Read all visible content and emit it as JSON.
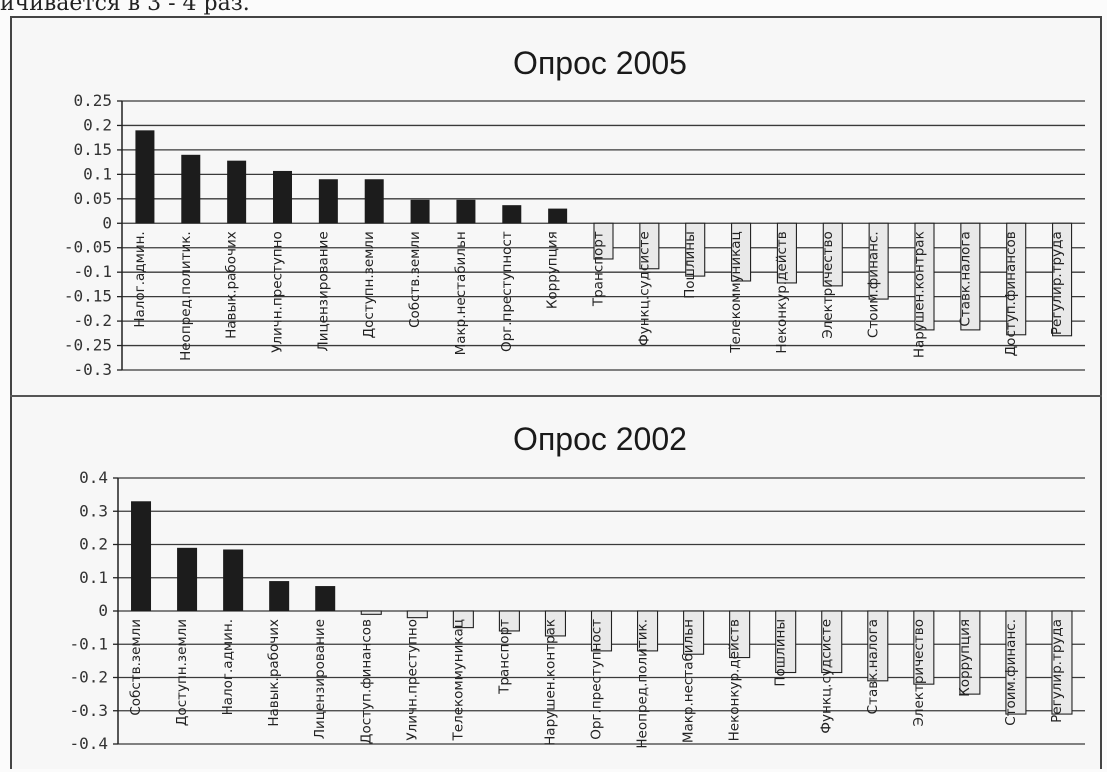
{
  "page": {
    "top_text": "ичивается в 3 - 4 раз."
  },
  "chart_data": [
    {
      "type": "bar",
      "title": "Опрос 2005",
      "ylim": [
        -0.3,
        0.25
      ],
      "yticks": [
        "0.25",
        "0.2",
        "0.15",
        "0.1",
        "0.05",
        "0",
        "-0.05",
        "-0.1",
        "-0.15",
        "-0.2",
        "-0.25",
        "-0.3"
      ],
      "ytick_values": [
        0.25,
        0.2,
        0.15,
        0.1,
        0.05,
        0,
        -0.05,
        -0.1,
        -0.15,
        -0.2,
        -0.25,
        -0.3
      ],
      "grid": true,
      "categories": [
        "Налог.админ.",
        "Неопред.политик.",
        "Навык.рабочих",
        "Уличн.преступно",
        "Лицензирование",
        "Доступн.земли",
        "Собств.земли",
        "Макр.нестабильн",
        "Орг.преступност",
        "Коррупция",
        "Транспорт",
        "Функц.судсисте",
        "Пошлины",
        "Телекоммуникац",
        "Неконкур.действ",
        "Электричество",
        "Стоим.финанс.",
        "Нарушен.контрак",
        "Ставк.налога",
        "Доступ.финансов",
        "Регулир.труда"
      ],
      "values": [
        0.19,
        0.14,
        0.128,
        0.107,
        0.09,
        0.09,
        0.048,
        0.048,
        0.037,
        0.03,
        -0.073,
        -0.093,
        -0.108,
        -0.118,
        -0.122,
        -0.128,
        -0.155,
        -0.218,
        -0.218,
        -0.228,
        -0.23
      ],
      "colors": {
        "positive": "#1c1c1c",
        "negative": "#e9e9e9",
        "grid": "#3a3a3a"
      }
    },
    {
      "type": "bar",
      "title": "Опрос 2002",
      "ylim": [
        -0.4,
        0.4
      ],
      "yticks": [
        "0.4",
        "0.3",
        "0.2",
        "0.1",
        "0",
        "-0.1",
        "-0.2",
        "-0.3",
        "-0.4"
      ],
      "ytick_values": [
        0.4,
        0.3,
        0.2,
        0.1,
        0,
        -0.1,
        -0.2,
        -0.3,
        -0.4
      ],
      "grid": true,
      "categories": [
        "Собств.земли",
        "Доступн.земли",
        "Налог.админ.",
        "Навык.рабочих",
        "Лицензирование",
        "Доступ.финансов",
        "Уличн.преступно",
        "Телекоммуникац",
        "Транспорт",
        "Нарушен.контрак",
        "Орг.преступност",
        "Неопред.политик.",
        "Макр.нестабильн",
        "Неконкур.действ",
        "Пошлины",
        "Функц.судсисте",
        "Ставк.налога",
        "Электричество",
        "Коррупция",
        "Стоим.финанс.",
        "Регулир.труда"
      ],
      "values": [
        0.33,
        0.19,
        0.185,
        0.09,
        0.075,
        -0.01,
        -0.02,
        -0.05,
        -0.06,
        -0.075,
        -0.12,
        -0.12,
        -0.13,
        -0.14,
        -0.185,
        -0.185,
        -0.21,
        -0.22,
        -0.25,
        -0.31,
        -0.31
      ],
      "colors": {
        "positive": "#1c1c1c",
        "negative": "#e9e9e9",
        "grid": "#3a3a3a"
      }
    }
  ]
}
